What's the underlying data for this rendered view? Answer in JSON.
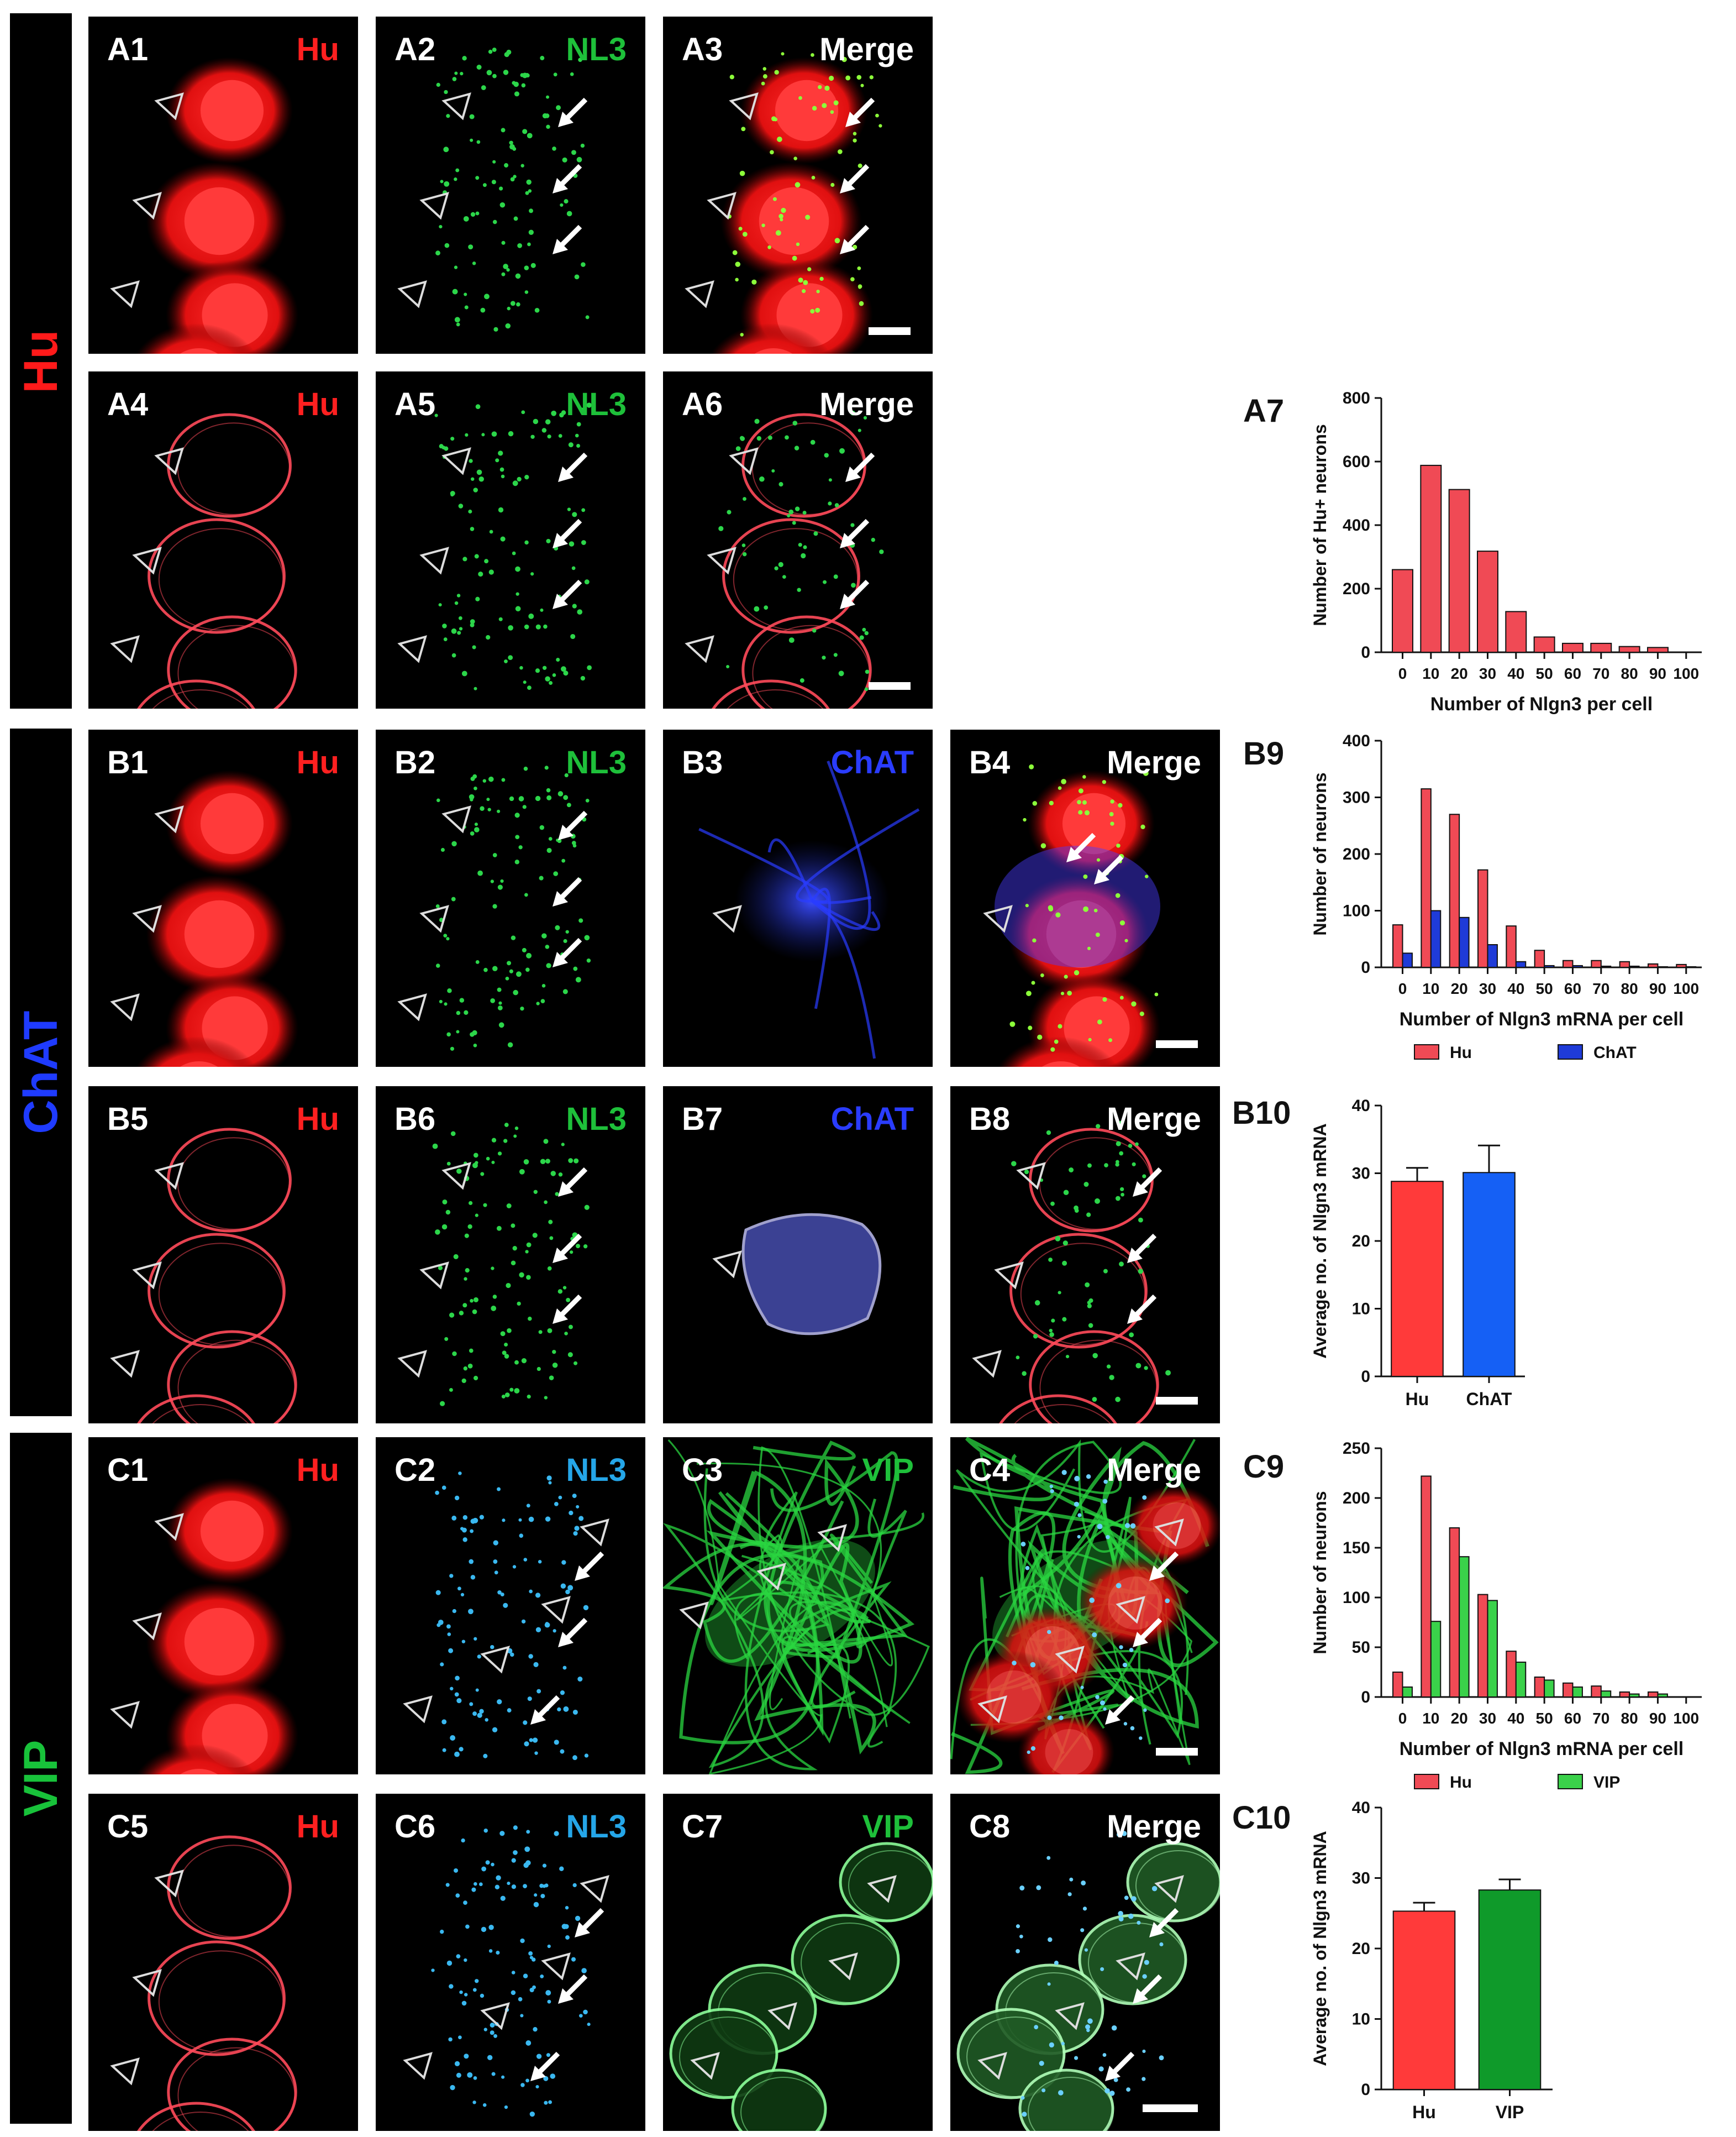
{
  "rows": {
    "hu": {
      "label": "Hu",
      "color": "#ff1a1a"
    },
    "chat": {
      "label": "ChAT",
      "color": "#1f3bff"
    },
    "vip": {
      "label": "VIP",
      "color": "#18c23a"
    }
  },
  "panels": [
    {
      "id": "A1",
      "channel": "Hu",
      "channel_color": "#ff2020",
      "type": "hu-soma"
    },
    {
      "id": "A2",
      "channel": "NL3",
      "channel_color": "#1ec03a",
      "type": "dots-green"
    },
    {
      "id": "A3",
      "channel": "Merge",
      "channel_color": "#ffffff",
      "type": "merge-hu"
    },
    {
      "id": "A4",
      "channel": "Hu",
      "channel_color": "#ff2020",
      "type": "hu-outline"
    },
    {
      "id": "A5",
      "channel": "NL3",
      "channel_color": "#1ec03a",
      "type": "dots-green"
    },
    {
      "id": "A6",
      "channel": "Merge",
      "channel_color": "#ffffff",
      "type": "merge-outline"
    },
    {
      "id": "B1",
      "channel": "Hu",
      "channel_color": "#ff2020",
      "type": "hu-soma"
    },
    {
      "id": "B2",
      "channel": "NL3",
      "channel_color": "#1ec03a",
      "type": "dots-green"
    },
    {
      "id": "B3",
      "channel": "ChAT",
      "channel_color": "#2a3cff",
      "type": "chat-blue"
    },
    {
      "id": "B4",
      "channel": "Merge",
      "channel_color": "#ffffff",
      "type": "merge-chat"
    },
    {
      "id": "B5",
      "channel": "Hu",
      "channel_color": "#ff2020",
      "type": "hu-outline"
    },
    {
      "id": "B6",
      "channel": "NL3",
      "channel_color": "#1ec03a",
      "type": "dots-green"
    },
    {
      "id": "B7",
      "channel": "ChAT",
      "channel_color": "#2a3cff",
      "type": "chat-outline"
    },
    {
      "id": "B8",
      "channel": "Merge",
      "channel_color": "#ffffff",
      "type": "merge-outline"
    },
    {
      "id": "C1",
      "channel": "Hu",
      "channel_color": "#ff2020",
      "type": "hu-soma"
    },
    {
      "id": "C2",
      "channel": "NL3",
      "channel_color": "#25a6e8",
      "type": "dots-cyan"
    },
    {
      "id": "C3",
      "channel": "VIP",
      "channel_color": "#1ec03a",
      "type": "vip-green"
    },
    {
      "id": "C4",
      "channel": "Merge",
      "channel_color": "#ffffff",
      "type": "merge-vip"
    },
    {
      "id": "C5",
      "channel": "Hu",
      "channel_color": "#ff2020",
      "type": "hu-outline"
    },
    {
      "id": "C6",
      "channel": "NL3",
      "channel_color": "#25a6e8",
      "type": "dots-cyan"
    },
    {
      "id": "C7",
      "channel": "VIP",
      "channel_color": "#1ec03a",
      "type": "vip-outline"
    },
    {
      "id": "C8",
      "channel": "Merge",
      "channel_color": "#ffffff",
      "type": "merge-vip-outline"
    }
  ],
  "chart_data": [
    {
      "id": "A7",
      "tag": "A7",
      "type": "bar",
      "xlabel": "Number of Nlgn3 per cell",
      "ylabel": "Number of Hu+ neurons",
      "categories": [
        "0",
        "10",
        "20",
        "30",
        "40",
        "50",
        "60",
        "70",
        "80",
        "90",
        "100"
      ],
      "ylim": [
        0,
        800
      ],
      "yticks": [
        0,
        200,
        400,
        600,
        800
      ],
      "series": [
        {
          "name": "Hu",
          "color": "#f04a55",
          "values": [
            260,
            588,
            512,
            318,
            128,
            48,
            28,
            28,
            18,
            15,
            0
          ]
        }
      ],
      "legend": false
    },
    {
      "id": "B9",
      "tag": "B9",
      "type": "bar",
      "xlabel": "Number of Nlgn3 mRNA per cell",
      "ylabel": "Number of neurons",
      "categories": [
        "0",
        "10",
        "20",
        "30",
        "40",
        "50",
        "60",
        "70",
        "80",
        "90",
        "100"
      ],
      "ylim": [
        0,
        400
      ],
      "yticks": [
        0,
        100,
        200,
        300,
        400
      ],
      "series": [
        {
          "name": "Hu",
          "color": "#f04a55",
          "values": [
            75,
            315,
            270,
            172,
            73,
            30,
            12,
            12,
            10,
            6,
            5
          ]
        },
        {
          "name": "ChAT",
          "color": "#1f3bd8",
          "values": [
            25,
            100,
            88,
            40,
            10,
            3,
            3,
            2,
            2,
            1,
            1
          ]
        }
      ],
      "legend": true
    },
    {
      "id": "B10",
      "tag": "B10",
      "type": "bar-error",
      "xlabel": "",
      "ylabel": "Average no. of Nlgn3 mRNA",
      "categories": [
        "Hu",
        "ChAT"
      ],
      "ylim": [
        0,
        40
      ],
      "yticks": [
        0,
        10,
        20,
        30,
        40
      ],
      "values": [
        28.8,
        30.1
      ],
      "errors": [
        2.0,
        4.0
      ],
      "colors": [
        "#ff3a3a",
        "#1560f5"
      ]
    },
    {
      "id": "C9",
      "tag": "C9",
      "type": "bar",
      "xlabel": "Number of Nlgn3 mRNA per cell",
      "ylabel": "Number of neurons",
      "categories": [
        "0",
        "10",
        "20",
        "30",
        "40",
        "50",
        "60",
        "70",
        "80",
        "90",
        "100"
      ],
      "ylim": [
        0,
        250
      ],
      "yticks": [
        0,
        50,
        100,
        150,
        200,
        250
      ],
      "series": [
        {
          "name": "Hu",
          "color": "#f04a55",
          "values": [
            25,
            222,
            170,
            103,
            46,
            20,
            14,
            11,
            5,
            5,
            0
          ]
        },
        {
          "name": "VIP",
          "color": "#3ad14a",
          "values": [
            10,
            76,
            141,
            97,
            35,
            17,
            10,
            6,
            3,
            3,
            0
          ]
        }
      ],
      "legend": true
    },
    {
      "id": "C10",
      "tag": "C10",
      "type": "bar-error",
      "xlabel": "",
      "ylabel": "Average no. of Nlgn3 mRNA",
      "categories": [
        "Hu",
        "VIP"
      ],
      "ylim": [
        0,
        40
      ],
      "yticks": [
        0,
        10,
        20,
        30,
        40
      ],
      "values": [
        25.3,
        28.3
      ],
      "errors": [
        1.2,
        1.5
      ],
      "colors": [
        "#ff3a3a",
        "#0f9a2a"
      ]
    }
  ]
}
